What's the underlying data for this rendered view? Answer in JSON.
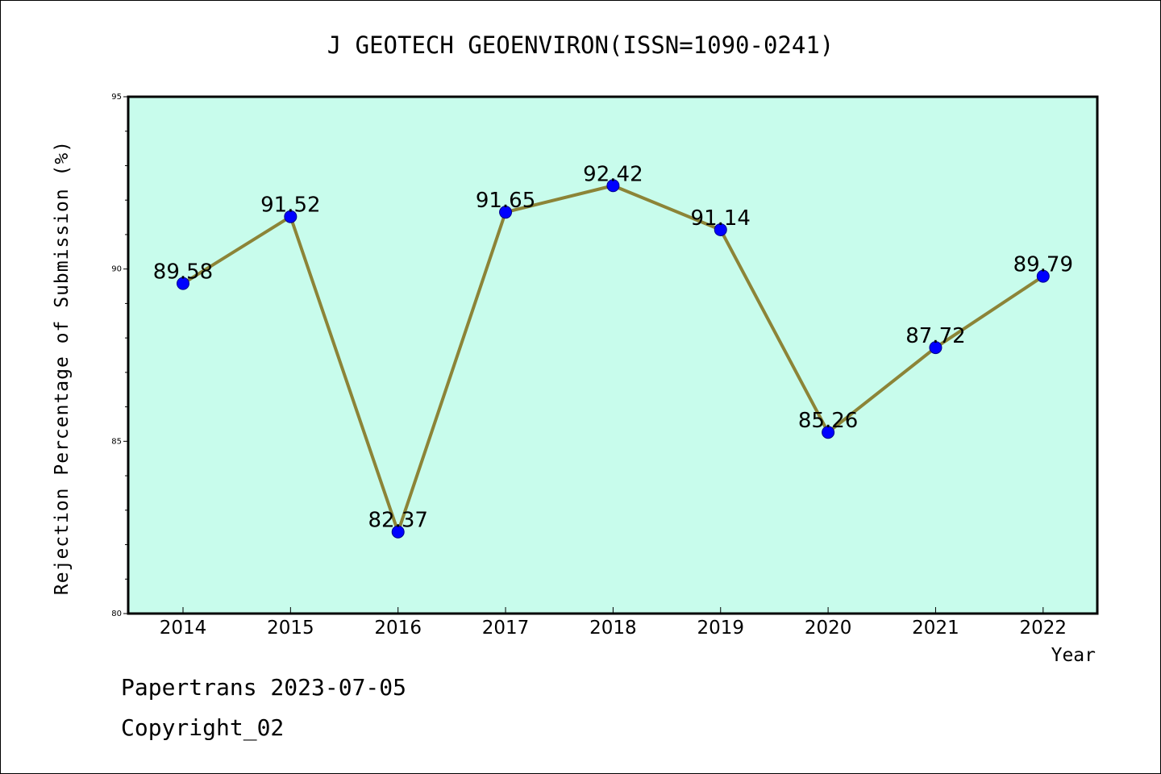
{
  "chart_data": {
    "type": "line",
    "title": "J GEOTECH GEOENVIRON(ISSN=1090-0241)",
    "xlabel": "Year",
    "ylabel": "Rejection Percentage of Submission (%)",
    "ylim": [
      80,
      95
    ],
    "yticks": [
      "80",
      "85",
      "90",
      "95"
    ],
    "grid": false,
    "categories": [
      "2014",
      "2015",
      "2016",
      "2017",
      "2018",
      "2019",
      "2020",
      "2021",
      "2022"
    ],
    "series": [
      {
        "values": [
          89.58,
          91.52,
          82.37,
          91.65,
          92.42,
          91.14,
          85.26,
          87.72,
          89.79
        ],
        "labels": [
          "89.58",
          "91.52",
          "82.37",
          "91.65",
          "92.42",
          "91.14",
          "85.26",
          "87.72",
          "89.79"
        ]
      }
    ],
    "colors": {
      "plot_background": "#c8fcec",
      "line": "#8c8437",
      "marker": "#0000ff",
      "axis": "#000000"
    }
  },
  "footer": {
    "line1": "Papertrans 2023-07-05",
    "line2": "Copyright_02"
  }
}
